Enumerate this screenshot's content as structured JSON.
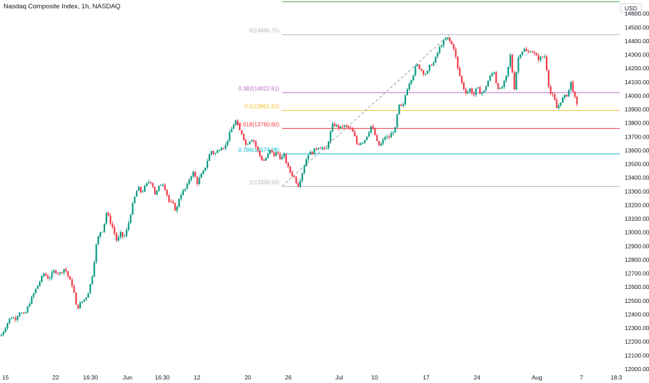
{
  "title": "Nasdaq Composite Index, 1h, NASDAQ",
  "chart_data": {
    "type": "candlestick",
    "currency": "USD",
    "ylim": [
      12000,
      14700
    ],
    "y_ticks": [
      12000,
      12100,
      12200,
      12300,
      12400,
      12500,
      12600,
      12700,
      12800,
      12900,
      13000,
      13100,
      13200,
      13300,
      13400,
      13500,
      13600,
      13700,
      13800,
      13900,
      14000,
      14100,
      14200,
      14300,
      14400,
      14500,
      14600
    ],
    "x_tick_labels": [
      "15",
      "22",
      "16:30",
      "Jun",
      "16:30",
      "12",
      "20",
      "26",
      "Jul",
      "10",
      "17",
      "24",
      "Aug",
      "7",
      "18:3"
    ],
    "close_path": [
      [
        0,
        12230
      ],
      [
        8,
        12310
      ],
      [
        15,
        12380
      ],
      [
        22,
        12370
      ],
      [
        28,
        12420
      ],
      [
        35,
        12390
      ],
      [
        42,
        12480
      ],
      [
        50,
        12570
      ],
      [
        57,
        12640
      ],
      [
        63,
        12700
      ],
      [
        70,
        12660
      ],
      [
        78,
        12720
      ],
      [
        86,
        12700
      ],
      [
        93,
        12740
      ],
      [
        100,
        12650
      ],
      [
        105,
        12600
      ],
      [
        110,
        12440
      ],
      [
        117,
        12490
      ],
      [
        123,
        12520
      ],
      [
        128,
        12580
      ],
      [
        133,
        12700
      ],
      [
        138,
        12900
      ],
      [
        143,
        13000
      ],
      [
        148,
        13020
      ],
      [
        153,
        13150
      ],
      [
        158,
        13080
      ],
      [
        163,
        13020
      ],
      [
        168,
        12930
      ],
      [
        173,
        12990
      ],
      [
        178,
        12960
      ],
      [
        183,
        13030
      ],
      [
        188,
        13150
      ],
      [
        193,
        13250
      ],
      [
        198,
        13330
      ],
      [
        203,
        13290
      ],
      [
        208,
        13330
      ],
      [
        213,
        13370
      ],
      [
        218,
        13370
      ],
      [
        223,
        13270
      ],
      [
        228,
        13330
      ],
      [
        233,
        13370
      ],
      [
        238,
        13310
      ],
      [
        243,
        13220
      ],
      [
        248,
        13210
      ],
      [
        253,
        13150
      ],
      [
        258,
        13270
      ],
      [
        263,
        13300
      ],
      [
        268,
        13330
      ],
      [
        273,
        13410
      ],
      [
        278,
        13440
      ],
      [
        283,
        13360
      ],
      [
        288,
        13410
      ],
      [
        293,
        13450
      ],
      [
        298,
        13530
      ],
      [
        303,
        13600
      ],
      [
        308,
        13570
      ],
      [
        313,
        13600
      ],
      [
        318,
        13630
      ],
      [
        323,
        13620
      ],
      [
        328,
        13700
      ],
      [
        333,
        13760
      ],
      [
        338,
        13820
      ],
      [
        343,
        13750
      ],
      [
        348,
        13720
      ],
      [
        353,
        13640
      ],
      [
        358,
        13670
      ],
      [
        363,
        13690
      ],
      [
        368,
        13620
      ],
      [
        373,
        13560
      ],
      [
        378,
        13520
      ],
      [
        383,
        13550
      ],
      [
        388,
        13600
      ],
      [
        393,
        13560
      ],
      [
        398,
        13590
      ],
      [
        403,
        13540
      ],
      [
        408,
        13560
      ],
      [
        413,
        13480
      ],
      [
        418,
        13430
      ],
      [
        423,
        13400
      ],
      [
        428,
        13340
      ],
      [
        433,
        13420
      ],
      [
        438,
        13510
      ],
      [
        443,
        13580
      ],
      [
        448,
        13580
      ],
      [
        453,
        13610
      ],
      [
        458,
        13630
      ],
      [
        463,
        13620
      ],
      [
        468,
        13590
      ],
      [
        473,
        13700
      ],
      [
        478,
        13790
      ],
      [
        483,
        13780
      ],
      [
        488,
        13760
      ],
      [
        493,
        13780
      ],
      [
        498,
        13770
      ],
      [
        503,
        13760
      ],
      [
        508,
        13720
      ],
      [
        513,
        13640
      ],
      [
        518,
        13660
      ],
      [
        523,
        13670
      ],
      [
        528,
        13720
      ],
      [
        533,
        13780
      ],
      [
        538,
        13720
      ],
      [
        543,
        13630
      ],
      [
        548,
        13650
      ],
      [
        553,
        13700
      ],
      [
        558,
        13690
      ],
      [
        563,
        13730
      ],
      [
        568,
        13760
      ],
      [
        572,
        13920
      ],
      [
        575,
        13930
      ],
      [
        578,
        13900
      ],
      [
        583,
        14030
      ],
      [
        588,
        14100
      ],
      [
        593,
        14150
      ],
      [
        598,
        14230
      ],
      [
        603,
        14200
      ],
      [
        608,
        14170
      ],
      [
        613,
        14160
      ],
      [
        618,
        14230
      ],
      [
        623,
        14240
      ],
      [
        628,
        14310
      ],
      [
        633,
        14370
      ],
      [
        638,
        14400
      ],
      [
        643,
        14420
      ],
      [
        648,
        14380
      ],
      [
        653,
        14340
      ],
      [
        656,
        14220
      ],
      [
        660,
        14150
      ],
      [
        665,
        14060
      ],
      [
        670,
        14020
      ],
      [
        675,
        14050
      ],
      [
        680,
        14000
      ],
      [
        685,
        14060
      ],
      [
        690,
        14020
      ],
      [
        695,
        14030
      ],
      [
        700,
        14100
      ],
      [
        705,
        14150
      ],
      [
        710,
        14180
      ],
      [
        713,
        14080
      ],
      [
        718,
        14040
      ],
      [
        723,
        14080
      ],
      [
        728,
        14150
      ],
      [
        733,
        14300
      ],
      [
        736,
        14160
      ],
      [
        739,
        14040
      ],
      [
        743,
        14260
      ],
      [
        748,
        14320
      ],
      [
        753,
        14340
      ],
      [
        758,
        14310
      ],
      [
        763,
        14340
      ],
      [
        768,
        14300
      ],
      [
        773,
        14270
      ],
      [
        778,
        14280
      ],
      [
        783,
        14290
      ],
      [
        787,
        14100
      ],
      [
        791,
        14010
      ],
      [
        795,
        13990
      ],
      [
        800,
        13900
      ],
      [
        805,
        13960
      ],
      [
        810,
        13990
      ],
      [
        815,
        14010
      ],
      [
        820,
        14100
      ],
      [
        825,
        13990
      ],
      [
        829,
        13920
      ]
    ],
    "fibonacci": {
      "levels": [
        {
          "label": "0(14446.75)",
          "value": 14446.75,
          "color": "#b2b5be"
        },
        {
          "label": "0.382(14022.61)",
          "value": 14022.61,
          "color": "#ba68c8"
        },
        {
          "label": "0.5(13891.63)",
          "value": 13891.63,
          "color": "#fbc02d"
        },
        {
          "label": "0.618(13760.60)",
          "value": 13760.6,
          "color": "#f23645"
        },
        {
          "label": "0.786(13574.08)",
          "value": 13574.08,
          "color": "#00bcd4"
        },
        {
          "label": "1(13336.50)",
          "value": 13336.5,
          "color": "#b2b5be"
        }
      ]
    },
    "colors": {
      "up": "#089981",
      "down": "#f23645",
      "top_line": "#4caf50",
      "axis_text": "#131722"
    }
  }
}
